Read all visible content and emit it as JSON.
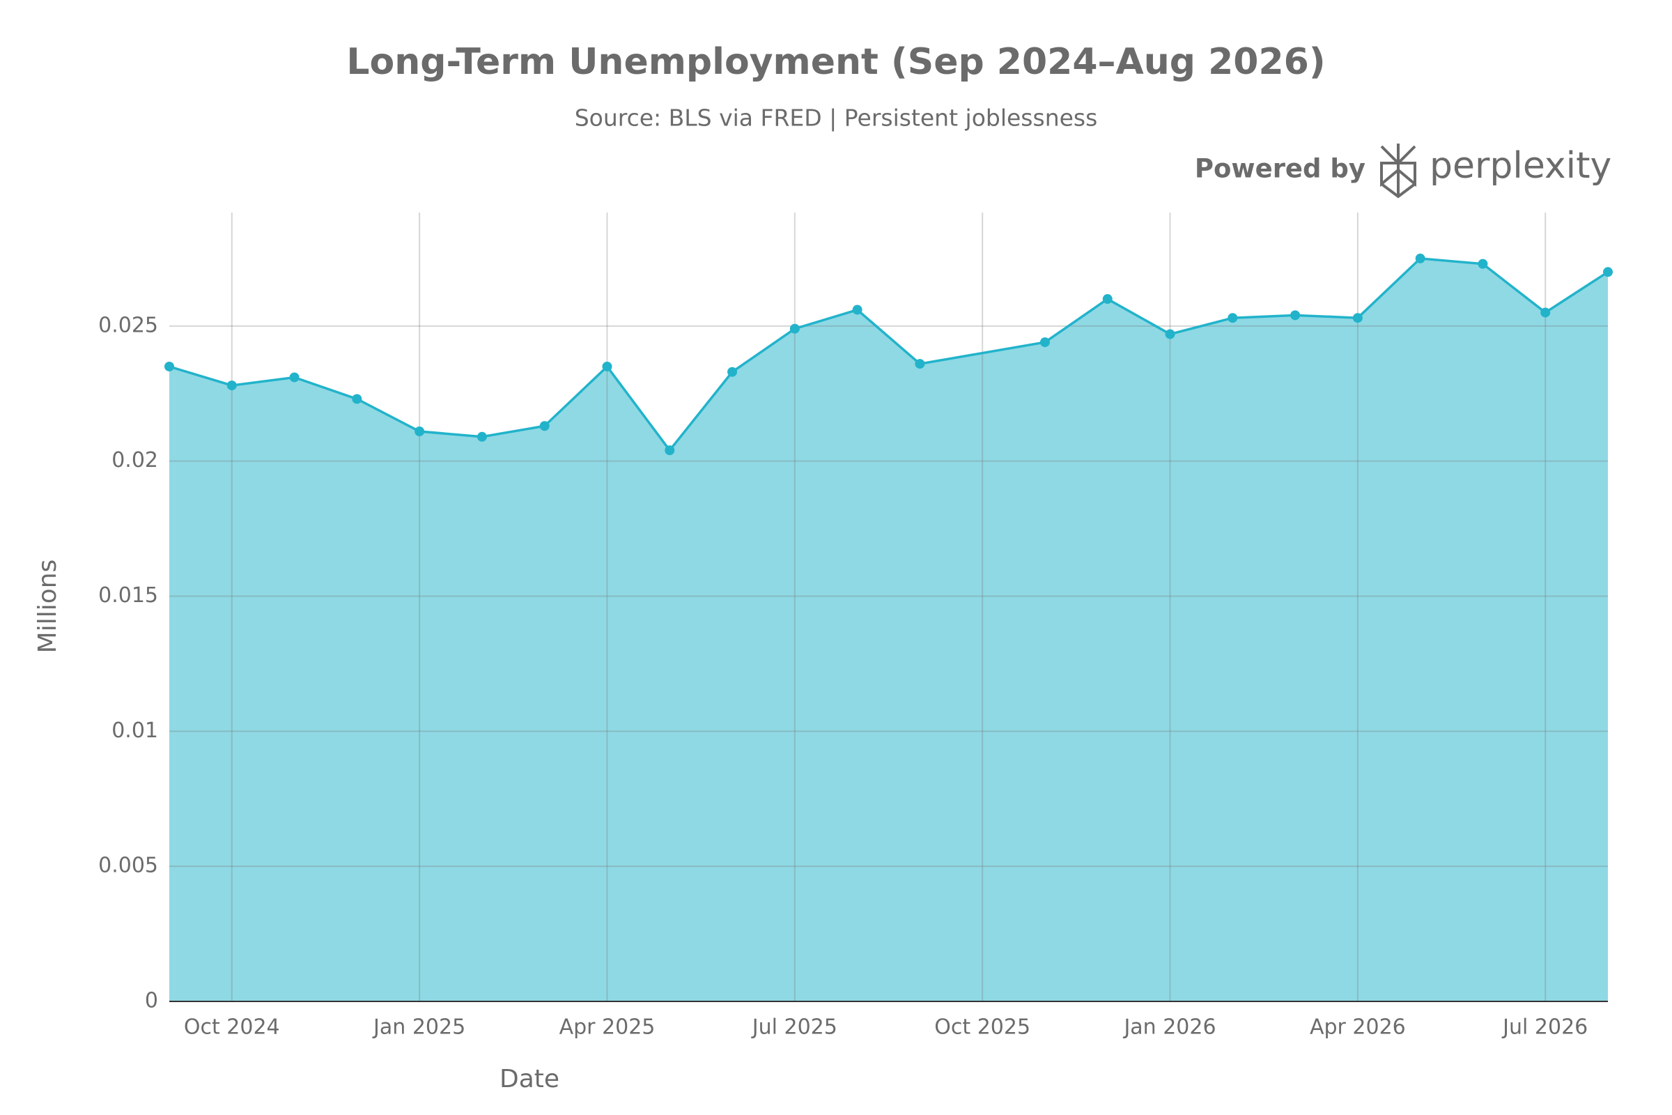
{
  "chart_data": {
    "type": "area",
    "title": "Long-Term Unemployment (Sep 2024–Aug 2026)",
    "subtitle": "Source: BLS via FRED | Persistent joblessness",
    "branding": {
      "prefix": "Powered by",
      "name": "perplexity"
    },
    "x_label": "Date",
    "y_label": "Millions",
    "x": [
      "2024-09",
      "2024-10",
      "2024-11",
      "2024-12",
      "2025-01",
      "2025-02",
      "2025-03",
      "2025-04",
      "2025-05",
      "2025-06",
      "2025-07",
      "2025-08",
      "2025-09",
      "2025-11",
      "2025-12",
      "2026-01",
      "2026-02",
      "2026-03",
      "2026-04",
      "2026-05",
      "2026-06",
      "2026-07",
      "2026-08"
    ],
    "series": [
      {
        "name": "Long-Term Unemployment",
        "color": "#22b3cb",
        "fill": "#8fd9e4",
        "values": [
          0.0235,
          0.0228,
          0.0231,
          0.0223,
          0.0211,
          0.0209,
          0.0213,
          0.0235,
          0.0204,
          0.0233,
          0.0249,
          0.0256,
          0.0236,
          0.0244,
          0.026,
          0.0247,
          0.0253,
          0.0254,
          0.0253,
          0.0275,
          0.0273,
          0.0255,
          0.027
        ]
      }
    ],
    "xlim": [
      "2024-09",
      "2026-08"
    ],
    "xticks": [
      {
        "value": "2024-10",
        "label": "Oct 2024"
      },
      {
        "value": "2025-01",
        "label": "Jan 2025"
      },
      {
        "value": "2025-04",
        "label": "Apr 2025"
      },
      {
        "value": "2025-07",
        "label": "Jul 2025"
      },
      {
        "value": "2025-10",
        "label": "Oct 2025"
      },
      {
        "value": "2026-01",
        "label": "Jan 2026"
      },
      {
        "value": "2026-04",
        "label": "Apr 2026"
      },
      {
        "value": "2026-07",
        "label": "Jul 2026"
      }
    ],
    "ylim": [
      0,
      0.0292
    ],
    "yticks": [
      0,
      0.005,
      0.01,
      0.015,
      0.02,
      0.025
    ],
    "grid": true
  }
}
